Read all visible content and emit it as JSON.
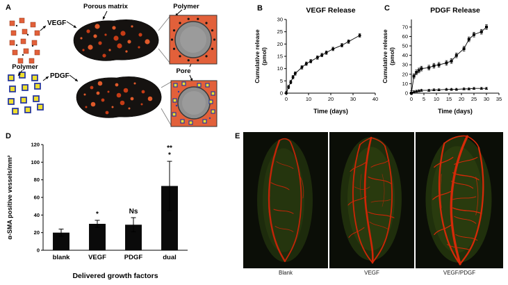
{
  "panels": {
    "a": {
      "label": "A",
      "labels": {
        "porous_matrix": "Porous matrix",
        "vegf": "VEGF",
        "polymer_top": "Polymer",
        "polymer_left": "Polymer",
        "pdgf": "PDGF",
        "pore": "Pore"
      }
    },
    "b": {
      "label": "B"
    },
    "c": {
      "label": "C"
    },
    "d": {
      "label": "D"
    },
    "e": {
      "label": "E",
      "captions": [
        "Blank",
        "VEGF",
        "VEGF/PDGF"
      ]
    }
  },
  "colors": {
    "polymer_particle_orange": "#e2603a",
    "pdgf_particle_yellow": "#efdf2e",
    "pdgf_particle_blue": "#2a3aa0",
    "matrix_black": "#151210",
    "matrix_pore_red": "#c63c16",
    "pore_gray": "#8f8f8f",
    "vessel_red": "#c22508",
    "bar_black": "#0a0a0a"
  },
  "chart_data": [
    {
      "id": "vegf_release",
      "type": "line",
      "title": "VEGF Release",
      "xlabel": "Time (days)",
      "ylabel": "Cumulative release\n(pmol)",
      "xlim": [
        0,
        40
      ],
      "ylim": [
        0,
        30
      ],
      "xticks": [
        0,
        10,
        20,
        30,
        40
      ],
      "yticks": [
        0,
        5,
        10,
        15,
        20,
        25,
        30
      ],
      "grid": false,
      "legend": "none",
      "series": [
        {
          "name": "VEGF cumulative release",
          "marker": "circle",
          "x": [
            0,
            1,
            2,
            3,
            4,
            7,
            9,
            11,
            14,
            16,
            18,
            21,
            25,
            28,
            33
          ],
          "y": [
            0,
            2.5,
            4.5,
            6.5,
            8,
            10.5,
            12,
            13,
            14.5,
            15.5,
            16.5,
            18,
            19.5,
            21,
            23.5
          ],
          "yerr": 0.7
        }
      ]
    },
    {
      "id": "pdgf_release",
      "type": "line",
      "title": "PDGF Release",
      "xlabel": "Time (days)",
      "ylabel": "Cumulative release\n(pmol)",
      "xlim": [
        0,
        35
      ],
      "ylim": [
        0,
        78
      ],
      "xticks": [
        0,
        5,
        10,
        15,
        20,
        25,
        30,
        35
      ],
      "yticks": [
        0,
        10,
        20,
        30,
        40,
        50,
        60,
        70
      ],
      "grid": false,
      "legend": "none",
      "series": [
        {
          "name": "PDGF cumulative release",
          "marker": "square",
          "x": [
            0,
            1,
            2,
            3,
            4,
            7,
            9,
            11,
            14,
            16,
            18,
            21,
            23,
            25,
            28,
            30
          ],
          "y": [
            0,
            18,
            22,
            24,
            26,
            27,
            29,
            30,
            32,
            34,
            40,
            47,
            57,
            62,
            65,
            70
          ],
          "yerr": 2.5
        },
        {
          "name": "control release",
          "marker": "triangle",
          "x": [
            0,
            1,
            2,
            3,
            4,
            7,
            9,
            11,
            14,
            16,
            18,
            21,
            23,
            25,
            28,
            30
          ],
          "y": [
            0,
            1.5,
            2,
            2.5,
            3,
            3,
            3.5,
            3.5,
            4,
            4,
            4,
            4.5,
            4.5,
            5,
            5,
            5
          ],
          "yerr": 1
        }
      ]
    },
    {
      "id": "sma_vessels",
      "type": "bar",
      "title": "",
      "xlabel": "Delivered growth factors",
      "ylabel": "α-SMA positive vessels/mm²",
      "categories": [
        "blank",
        "VEGF",
        "PDGF",
        "dual"
      ],
      "values": [
        20,
        30,
        29,
        73
      ],
      "errors": [
        4,
        4,
        8,
        28
      ],
      "annotations": [
        [],
        [
          "*"
        ],
        [
          "Ns"
        ],
        [
          "**",
          "*"
        ]
      ],
      "ylim": [
        0,
        120
      ],
      "yticks": [
        0,
        20,
        40,
        60,
        80,
        100,
        120
      ],
      "grid": false
    }
  ]
}
